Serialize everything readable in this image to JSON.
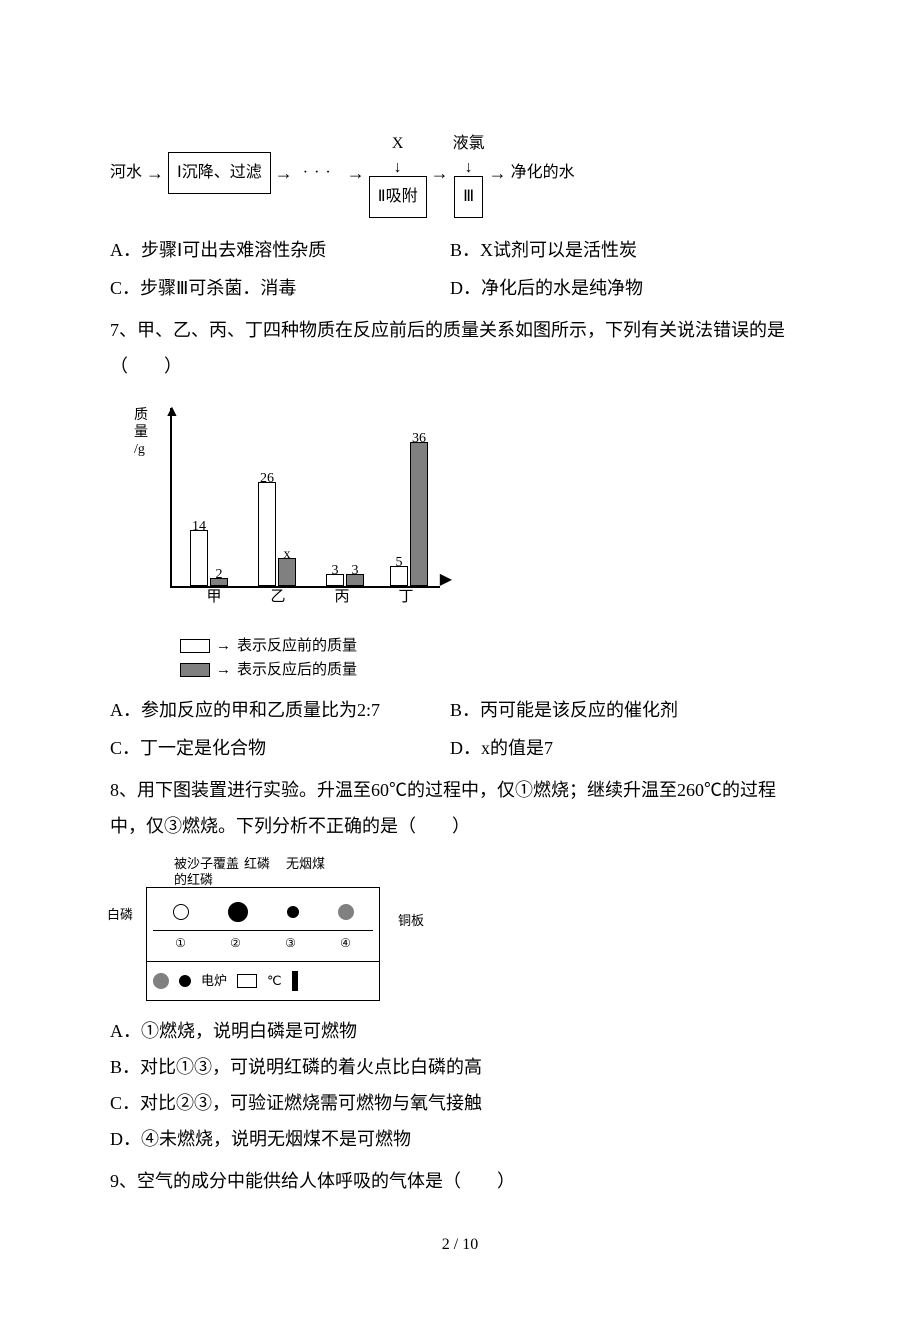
{
  "flow": {
    "start": "河水",
    "box1": "Ⅰ沉降、过滤",
    "dots": "···",
    "topX": "X",
    "topChlorine": "液氯",
    "box2": "Ⅱ吸附",
    "box3": "Ⅲ",
    "end": "净化的水"
  },
  "q6opts": {
    "A": "A．步骤Ⅰ可出去难溶性杂质",
    "B": "B．X试剂可以是活性炭",
    "C": "C．步骤Ⅲ可杀菌．消毒",
    "D": "D．净化后的水是纯净物"
  },
  "q7": {
    "text": "7、甲、乙、丙、丁四种物质在反应前后的质量关系如图所示，下列有关说法错误的是（　　）",
    "ylabel1": "质",
    "ylabel2": "量",
    "ylabel3": "/g",
    "bars": {
      "jia": {
        "before": 14,
        "after": 2
      },
      "yi": {
        "before": 26,
        "after_label": "x",
        "after_h": 7
      },
      "bing": {
        "before": 3,
        "after": 3
      },
      "ding": {
        "before": 5,
        "after": 36
      }
    },
    "xlabels": [
      "甲",
      "乙",
      "丙",
      "丁"
    ],
    "legend_before": "表示反应前的质量",
    "legend_after": "表示反应后的质量",
    "scale": 4,
    "opts": {
      "A": "A．参加反应的甲和乙质量比为2:7",
      "B": "B．丙可能是该反应的催化剂",
      "C": "C．丁一定是化合物",
      "D": "D．x的值是7"
    }
  },
  "q8": {
    "text1": "8、用下图装置进行实验。升温至60℃的过程中，仅①燃烧；继续升温至260℃的过程中，仅③燃烧。下列分析不正确的是（　　）",
    "labels": {
      "sand": "被沙子覆盖\n的红磷",
      "red": "红磷",
      "coal": "无烟煤",
      "white": "白磷",
      "copper": "铜板",
      "stove": "电炉",
      "temp": "℃"
    },
    "nums": [
      "①",
      "②",
      "③",
      "④"
    ],
    "opts": {
      "A": "A．①燃烧，说明白磷是可燃物",
      "B": "B．对比①③，可说明红磷的着火点比白磷的高",
      "C": "C．对比②③，可验证燃烧需可燃物与氧气接触",
      "D": "D．④未燃烧，说明无烟煤不是可燃物"
    }
  },
  "q9": "9、空气的成分中能供给人体呼吸的气体是（　　）",
  "page_num": "2 / 10",
  "arrows": {
    "right": "→",
    "down": "↓",
    "up": "▲",
    "rt": "▶"
  }
}
